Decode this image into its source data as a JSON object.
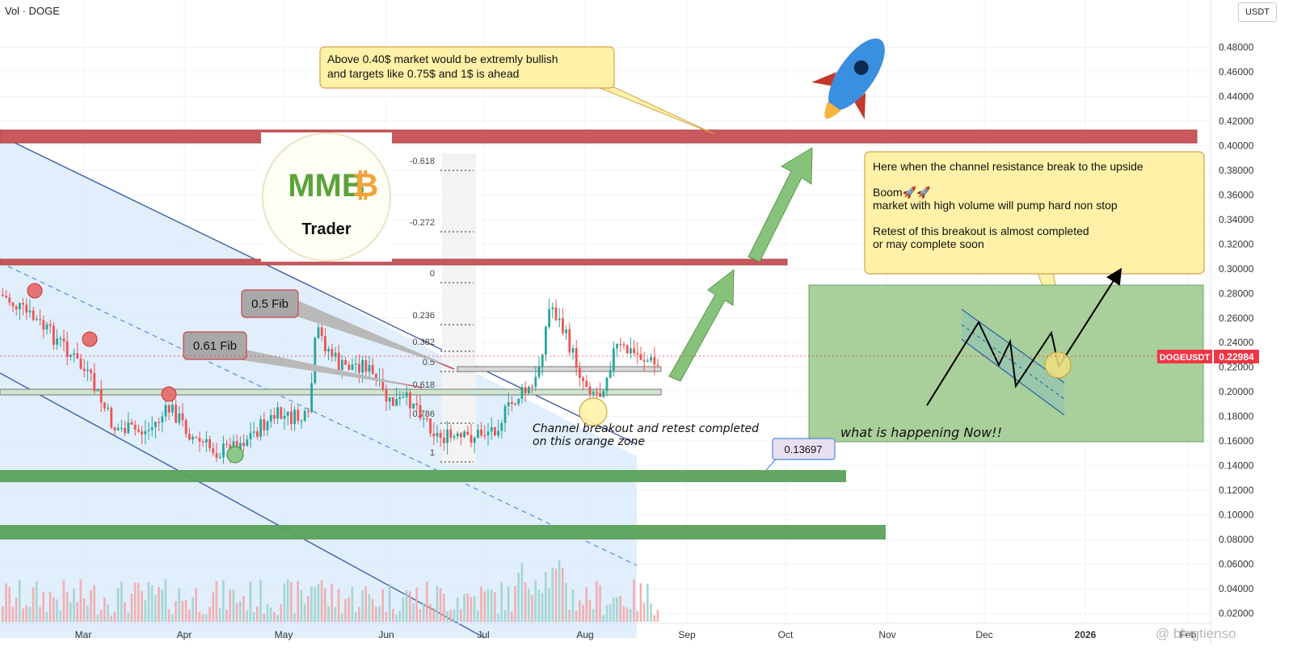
{
  "header": {
    "indicator": "Vol · DOGE",
    "currency_button": "USDT"
  },
  "price_axis": {
    "ticks": [
      "0.48000",
      "0.46000",
      "0.44000",
      "0.42000",
      "0.40000",
      "0.38000",
      "0.36000",
      "0.34000",
      "0.32000",
      "0.30000",
      "0.28000",
      "0.26000",
      "0.24000",
      "0.22000",
      "0.20000",
      "0.18000",
      "0.16000",
      "0.14000",
      "0.12000",
      "0.10000",
      "0.08000",
      "0.06000",
      "0.04000",
      "0.02000"
    ],
    "symbol_label": "DOGEUSDT",
    "last_price": "0.22984"
  },
  "time_axis": {
    "ticks": [
      "Mar",
      "Apr",
      "May",
      "Jun",
      "Jul",
      "Aug",
      "Sep",
      "Oct",
      "Nov",
      "Dec",
      "2026",
      "Feb"
    ]
  },
  "fib_levels": [
    "-0.618",
    "-0.272",
    "0",
    "0.236",
    "0.382",
    "0.5",
    "0.618",
    "0.786",
    "1"
  ],
  "annotations": {
    "top_callout": [
      "Above 0.40$ market would be extremly bullish",
      "and targets like 0.75$ and 1$ is ahead"
    ],
    "right_callout": [
      "Here when the channel resistance break to the upside",
      "",
      "Boom🚀🚀",
      "market with high volume will pump hard non stop",
      "",
      "Retest of this breakout is almost completed",
      " or may complete soon"
    ],
    "fib_05": "0.5 Fib",
    "fib_061": "0.61 Fib",
    "breakout_note": [
      "Channel breakout and retest completed",
      "on this orange zone"
    ],
    "now_note": "what is happening Now!!",
    "price_tag": "0.13697",
    "logo_text": "MMB",
    "logo_sub": "Trader"
  },
  "watermark": "@ blogtienso",
  "colors": {
    "bull": "#26a69a",
    "bear": "#ef5350",
    "resistance_zone": "#c8585c",
    "support_zone": "#5aa15a",
    "channel_fill": "#dcebfb",
    "channel_line": "#3f5ea8",
    "last_price": "#f23645",
    "callout_fill": "#fff2a8",
    "target_box": "#a9cf9a"
  },
  "chart_data": {
    "type": "candlestick",
    "symbol": "DOGEUSDT",
    "yrange": [
      0,
      0.5
    ],
    "current_price": 0.22984,
    "resistance_zones": [
      [
        0.4,
        0.41
      ],
      [
        0.302,
        0.307
      ]
    ],
    "support_zones": [
      [
        0.197,
        0.201
      ],
      [
        0.127,
        0.136
      ],
      [
        0.081,
        0.091
      ]
    ],
    "volume_visible": true
  }
}
